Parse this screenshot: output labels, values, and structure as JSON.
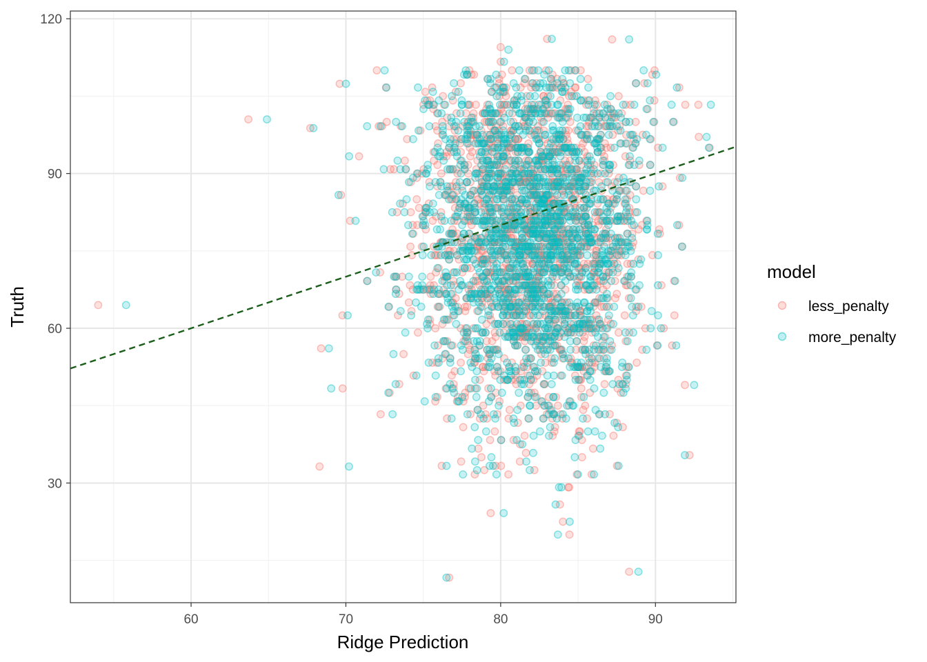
{
  "chart_data": {
    "type": "scatter",
    "title": "",
    "xlabel": "Ridge Prediction",
    "ylabel": "Truth",
    "xlim": [
      52.2,
      95.2
    ],
    "ylim": [
      6.8,
      121.5
    ],
    "x_ticks": [
      60,
      70,
      80,
      90
    ],
    "y_ticks": [
      30,
      60,
      90,
      120
    ],
    "x_tick_labels": [
      "60",
      "70",
      "80",
      "90"
    ],
    "y_tick_labels": [
      "30",
      "60",
      "90",
      "120"
    ],
    "grid": true,
    "legend": {
      "title": "model",
      "position": "right"
    },
    "reference_line": {
      "style": "dashed",
      "color": "#1a5e1a",
      "slope": 1,
      "intercept": 0
    },
    "series": [
      {
        "name": "less_penalty",
        "color": "#F8766D",
        "alpha": 0.25,
        "point_count": 1900
      },
      {
        "name": "more_penalty",
        "color": "#00BFC4",
        "alpha": 0.25,
        "point_count": 1900
      }
    ],
    "distribution": {
      "center_x": 82.0,
      "sd_x": 3.6,
      "center_y": 78.0,
      "sd_y": 18.0,
      "x_range": [
        54,
        93.5
      ],
      "y_range": [
        12,
        116
      ]
    },
    "outliers": [
      {
        "x": 54.0,
        "y": 64.5
      },
      {
        "x": 55.8,
        "y": 64.5
      },
      {
        "x": 63.7,
        "y": 100.5
      },
      {
        "x": 64.9,
        "y": 100.5
      },
      {
        "x": 67.7,
        "y": 98.8
      },
      {
        "x": 67.9,
        "y": 98.8
      },
      {
        "x": 68.3,
        "y": 33.2
      },
      {
        "x": 70.2,
        "y": 33.2
      },
      {
        "x": 68.4,
        "y": 56.1
      },
      {
        "x": 68.9,
        "y": 56.1
      },
      {
        "x": 69.6,
        "y": 107.4
      },
      {
        "x": 70.0,
        "y": 107.4
      },
      {
        "x": 72.0,
        "y": 110.0
      },
      {
        "x": 72.5,
        "y": 110.0
      },
      {
        "x": 91.9,
        "y": 49.0
      },
      {
        "x": 92.5,
        "y": 49.0
      },
      {
        "x": 92.8,
        "y": 97.1
      },
      {
        "x": 93.3,
        "y": 97.1
      },
      {
        "x": 92.2,
        "y": 35.4
      },
      {
        "x": 91.9,
        "y": 35.4
      },
      {
        "x": 88.3,
        "y": 12.8
      },
      {
        "x": 88.9,
        "y": 12.8
      },
      {
        "x": 83.0,
        "y": 116.1
      },
      {
        "x": 83.3,
        "y": 116.1
      },
      {
        "x": 87.2,
        "y": 116.0
      },
      {
        "x": 88.3,
        "y": 116.0
      },
      {
        "x": 80.0,
        "y": 114.5
      },
      {
        "x": 80.5,
        "y": 114.0
      }
    ]
  }
}
